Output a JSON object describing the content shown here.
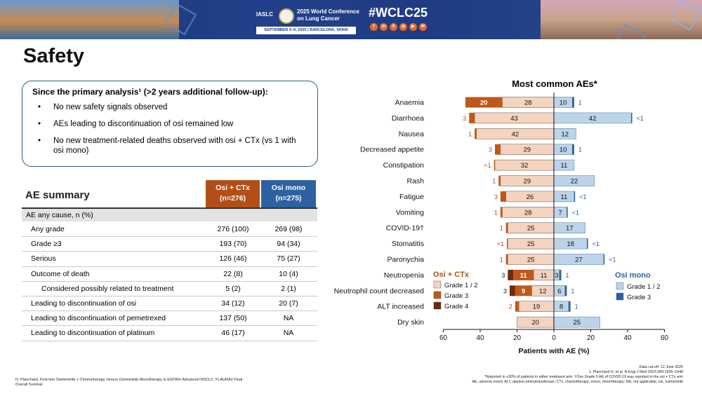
{
  "banner": {
    "org": "IASLC",
    "conference": "2025 World Conference on Lung Cancer",
    "dates": "SEPTEMBER 6–9, 2025  |  BARCELONA, SPAIN",
    "hashtag": "#WCLC25",
    "social_icons": [
      "facebook-icon",
      "linkedin-icon",
      "x-icon",
      "instagram-icon",
      "youtube-icon",
      "wechat-icon"
    ],
    "social_glyphs": [
      "f",
      "in",
      "X",
      "◎",
      "▶",
      "✉"
    ]
  },
  "title": "Safety",
  "summary": {
    "heading": "Since the primary analysis¹ (>2 years additional follow-up):",
    "bullets": [
      "No new safety signals observed",
      "AEs leading to discontinuation of osi remained low",
      "No new treatment-related deaths observed with osi + CTx (vs 1 with osi mono)"
    ]
  },
  "ae_table": {
    "title": "AE summary",
    "col_osi_ctx": "Osi + CTx (n=276)",
    "col_osi_mono": "Osi mono (n=275)",
    "section": "AE any cause, n (%)",
    "rows": [
      {
        "label": "Any grade",
        "ctx": "276 (100)",
        "mono": "269 (98)"
      },
      {
        "label": "Grade ≥3",
        "ctx": "193 (70)",
        "mono": "94 (34)"
      },
      {
        "label": "Serious",
        "ctx": "126 (46)",
        "mono": "75 (27)"
      },
      {
        "label": "Outcome of death",
        "ctx": "22 (8)",
        "mono": "10 (4)"
      },
      {
        "label": "Considered possibly related to treatment",
        "ctx": "5 (2)",
        "mono": "2 (1)",
        "indent": true
      },
      {
        "label": "Leading to discontinuation of osi",
        "ctx": "34 (12)",
        "mono": "20 (7)"
      },
      {
        "label": "Leading to discontinuation of pemetrexed",
        "ctx": "137 (50)",
        "mono": "NA"
      },
      {
        "label": "Leading to discontinuation of platinum",
        "ctx": "46 (17)",
        "mono": "NA"
      }
    ]
  },
  "colors": {
    "ctx_g12": "#f5d3bf",
    "ctx_g3": "#c0581b",
    "ctx_g4": "#6e2a0a",
    "mono_g12": "#bcd4ea",
    "mono_g3": "#2d5f9a",
    "ctx_text": "#b34f16",
    "mono_text": "#2d61a3"
  },
  "chart_data": {
    "type": "bar",
    "title": "Most common AEs*",
    "xlabel": "Patients with AE (%)",
    "xlim": [
      -60,
      60
    ],
    "xticks": [
      -60,
      -40,
      -20,
      0,
      20,
      40,
      60
    ],
    "xtick_labels": [
      "60",
      "40",
      "20",
      "0",
      "20",
      "40",
      "60"
    ],
    "categories": [
      "Anaemia",
      "Diarrhoea",
      "Nausea",
      "Decreased appetite",
      "Constipation",
      "Rash",
      "Fatigue",
      "Vomiting",
      "COVID-19†",
      "Stomatitis",
      "Paronychia",
      "Neutropenia",
      "Neutrophil count decreased",
      "ALT increased",
      "Dry skin"
    ],
    "osi_ctx": {
      "grade_1_2": [
        28,
        43,
        42,
        29,
        32,
        29,
        26,
        28,
        25,
        25,
        25,
        11,
        12,
        19,
        20
      ],
      "grade_3": [
        20,
        3,
        1,
        3,
        0.5,
        1,
        3,
        1,
        1,
        0.5,
        1,
        11,
        9,
        2,
        0
      ],
      "grade_4": [
        0,
        0,
        0,
        0,
        0,
        0,
        0,
        0,
        0,
        0,
        0,
        3,
        3,
        0,
        0
      ],
      "grade_3_labels": [
        "20",
        "3",
        "1",
        "3",
        "<1",
        "1",
        "3",
        "1",
        "1",
        "<1",
        "1",
        "11",
        "9",
        "2",
        ""
      ],
      "grade_4_labels": [
        "",
        "",
        "",
        "",
        "",
        "",
        "",
        "",
        "",
        "",
        "",
        "3",
        "3",
        "",
        ""
      ]
    },
    "osi_mono": {
      "grade_1_2": [
        10,
        42,
        12,
        10,
        11,
        22,
        11,
        7,
        17,
        18,
        27,
        3,
        6,
        8,
        25
      ],
      "grade_3": [
        1,
        0.5,
        0,
        1,
        0,
        0,
        0.5,
        0.5,
        0,
        0.5,
        0.5,
        1,
        1,
        1,
        0
      ],
      "grade_3_labels": [
        "1",
        "<1",
        "",
        "1",
        "",
        "",
        "<1",
        "<1",
        "",
        "<1",
        "<1",
        "1",
        "1",
        "1",
        ""
      ]
    },
    "legend": {
      "ctx_title": "Osi + CTx",
      "ctx_items": [
        "Grade 1 / 2",
        "Grade 3",
        "Grade 4"
      ],
      "mono_title": "Osi mono",
      "mono_items": [
        "Grade 1 / 2",
        "Grade 3"
      ]
    }
  },
  "footnotes": {
    "left": "D. Planchard. First-line Osimertinib + Chemotherapy Versus Osimertinib Monotherapy in EGFRm Advanced NSCLC: FLAURA2 Final Overall Survival",
    "cutoff": "Data cut-off: 12 June 2025",
    "ref": "1. Planchard D, et al. N Engl J Med 2023;389:1935–1948",
    "star": "*Reported in ≥20% of patients in either treatment arm. †One Grade 5 AE of COVID-19 was reported in the osi + CTx arm",
    "abbrev": "AE, adverse event; ALT, alanine aminotransferase; CTx, chemotherapy; mono, monotherapy; NA, not applicable; osi, osimertinib"
  }
}
